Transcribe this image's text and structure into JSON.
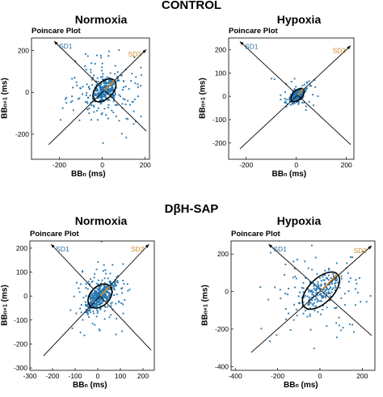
{
  "groups": [
    {
      "title": "CONTROL"
    },
    {
      "title": "DβH-SAP"
    }
  ],
  "conditions": {
    "normoxia": "Normoxia",
    "hypoxia": "Hypoxia"
  },
  "axis_text": {
    "panel_title": "Poincare Plot",
    "x_main": "BB",
    "x_sub": "n",
    "x_unit": " (ms)",
    "y_main": "BB",
    "y_sub": "n+1",
    "y_unit": " (ms)"
  },
  "colors": {
    "points": "#2878b0",
    "sd1": "#2a6fa8",
    "sd2": "#d08a2f",
    "ellipse": "#000000",
    "axes": "#000000"
  },
  "chart_data": [
    {
      "type": "scatter",
      "title": "Poincare Plot",
      "group": "CONTROL",
      "condition": "Normoxia",
      "xlabel": "BBn (ms)",
      "ylabel": "BBn+1 (ms)",
      "xlim": [
        -330,
        220
      ],
      "ylim": [
        -320,
        260
      ],
      "xticks": [
        -200,
        0,
        200
      ],
      "yticks": [
        -200,
        0,
        200
      ],
      "sd_labels": [
        "SD1",
        "SD2"
      ],
      "ellipse": {
        "center": [
          10,
          10
        ],
        "sd1": 40,
        "sd2": 65
      },
      "cloud": {
        "core_sd": 35,
        "spread_sd": 85,
        "n_core": 220,
        "n_spread": 170
      },
      "sd_line_extent": 260
    },
    {
      "type": "scatter",
      "title": "Poincare Plot",
      "group": "CONTROL",
      "condition": "Hypoxia",
      "xlabel": "BBn (ms)",
      "ylabel": "BBn+1 (ms)",
      "xlim": [
        -270,
        230
      ],
      "ylim": [
        -270,
        250
      ],
      "xticks": [
        -200,
        0,
        200
      ],
      "yticks": [
        -200,
        -100,
        0,
        100,
        200
      ],
      "sd_labels": [
        "SD1",
        "SD2"
      ],
      "ellipse": {
        "center": [
          5,
          5
        ],
        "sd1": 20,
        "sd2": 32
      },
      "cloud": {
        "core_sd": 18,
        "spread_sd": 45,
        "n_core": 230,
        "n_spread": 45
      },
      "sd_line_extent": 230
    },
    {
      "type": "scatter",
      "title": "Poincare Plot",
      "group": "DβH-SAP",
      "condition": "Normoxia",
      "xlabel": "BBn (ms)",
      "ylabel": "BBn+1 (ms)",
      "xlim": [
        -300,
        250
      ],
      "ylim": [
        -310,
        230
      ],
      "xticks": [
        -300,
        -200,
        -100,
        0,
        100,
        200
      ],
      "yticks": [
        -300,
        -200,
        -100,
        0,
        100,
        200
      ],
      "sd_labels": [
        "SD1",
        "SD2"
      ],
      "ellipse": {
        "center": [
          10,
          0
        ],
        "sd1": 40,
        "sd2": 62
      },
      "cloud": {
        "core_sd": 32,
        "spread_sd": 70,
        "n_core": 320,
        "n_spread": 120
      },
      "sd_line_extent": 250
    },
    {
      "type": "scatter",
      "title": "Poincare Plot",
      "group": "DβH-SAP",
      "condition": "Hypoxia",
      "xlabel": "BBn (ms)",
      "ylabel": "BBn+1 (ms)",
      "xlim": [
        -420,
        260
      ],
      "ylim": [
        -420,
        270
      ],
      "xticks": [
        -400,
        -200,
        0,
        200
      ],
      "yticks": [
        -400,
        -200,
        0,
        200
      ],
      "sd_labels": [
        "SD1",
        "SD2"
      ],
      "ellipse": {
        "center": [
          5,
          5
        ],
        "sd1": 65,
        "sd2": 110
      },
      "cloud": {
        "core_sd": 60,
        "spread_sd": 120,
        "n_core": 150,
        "n_spread": 110
      },
      "sd_line_extent": 330
    }
  ]
}
